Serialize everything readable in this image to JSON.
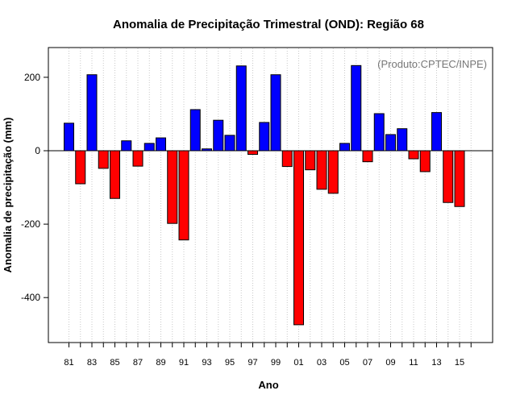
{
  "chart_data": {
    "type": "bar",
    "title": "Anomalia de Precipitação Trimestral (OND): Região 68",
    "xlabel": "Ano",
    "ylabel": "Anomalia de precipitação (mm)",
    "credit": "(Produto:CPTEC/INPE)",
    "ylim": [
      -520,
      280
    ],
    "yticks": [
      200,
      0,
      -200,
      -400
    ],
    "ytick_labels": [
      "200",
      "0",
      "-200",
      "-400"
    ],
    "categories": [
      "81",
      "82",
      "83",
      "84",
      "85",
      "86",
      "87",
      "88",
      "89",
      "90",
      "91",
      "92",
      "93",
      "94",
      "95",
      "96",
      "97",
      "98",
      "99",
      "00",
      "01",
      "02",
      "03",
      "04",
      "05",
      "06",
      "07",
      "08",
      "09",
      "10",
      "11",
      "12",
      "13",
      "14",
      "15",
      "16"
    ],
    "x_tick_labels": [
      "81",
      "",
      "83",
      "",
      "85",
      "",
      "87",
      "",
      "89",
      "",
      "91",
      "",
      "93",
      "",
      "95",
      "",
      "97",
      "",
      "99",
      "",
      "01",
      "",
      "03",
      "",
      "05",
      "",
      "07",
      "",
      "09",
      "",
      "11",
      "",
      "13",
      "",
      "15",
      ""
    ],
    "values": [
      75,
      -90,
      207,
      -48,
      -130,
      27,
      -42,
      20,
      35,
      -198,
      -243,
      112,
      5,
      83,
      42,
      231,
      -10,
      77,
      207,
      -43,
      -474,
      -52,
      -105,
      -116,
      20,
      232,
      -30,
      101,
      44,
      60,
      -22,
      -57,
      104,
      -141,
      -152,
      null
    ],
    "colors": {
      "positive": "#0000ff",
      "negative": "#ff0000",
      "grid": "#c8c8c8",
      "zero_line": "#000000"
    },
    "grid": true
  }
}
